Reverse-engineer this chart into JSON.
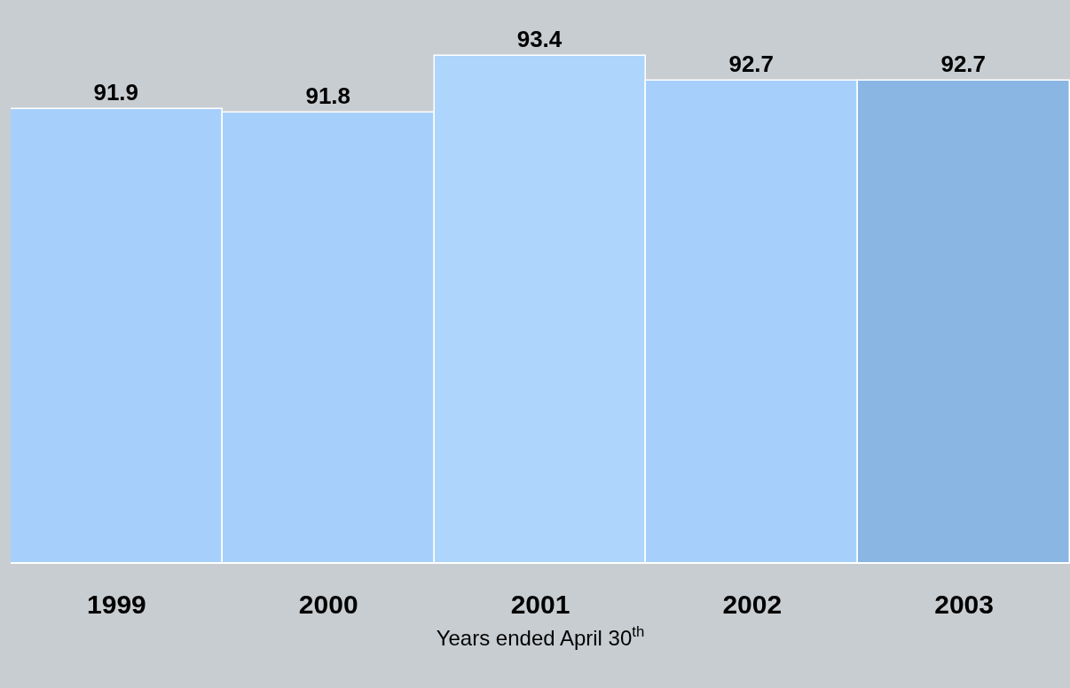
{
  "chart_data": {
    "type": "bar",
    "xlabel": "Years ended April 30$^{th}$",
    "categories": [
      "1999",
      "2000",
      "2001",
      "2002",
      "2003"
    ],
    "values": [
      91.9,
      91.8,
      93.4,
      92.7,
      92.7
    ],
    "colors": [
      "#a6d0fb",
      "#a6d0fb",
      "#aed5fb",
      "#a6d0fb",
      "#89b6e3"
    ],
    "data_labels": true,
    "grid": false,
    "legend": false
  }
}
